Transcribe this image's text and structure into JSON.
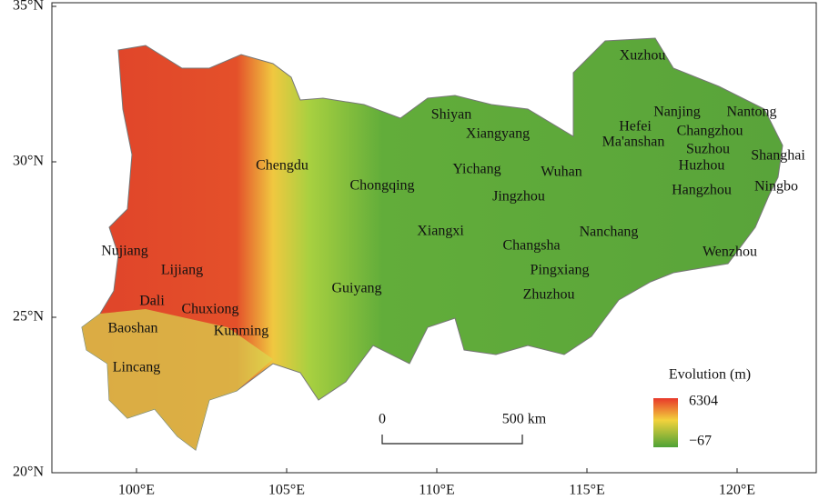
{
  "map": {
    "axes": {
      "x_ticks": [
        "100°E",
        "105°E",
        "110°E",
        "115°E",
        "120°E"
      ],
      "y_ticks": [
        "35°N",
        "30°N",
        "25°N",
        "20°N"
      ]
    },
    "cities": [
      "Xuzhou",
      "Shiyan",
      "Xiangyang",
      "Nanjing",
      "Nantong",
      "Hefei",
      "Changzhou",
      "Ma'anshan",
      "Suzhou",
      "Shanghai",
      "Chengdu",
      "Yichang",
      "Wuhan",
      "Huzhou",
      "Chongqing",
      "Jingzhou",
      "Hangzhou",
      "Ningbo",
      "Xiangxi",
      "Nanchang",
      "Changsha",
      "Nujiang",
      "Wenzhou",
      "Lijiang",
      "Pingxiang",
      "Guiyang",
      "Dali",
      "Chuxiong",
      "Zhuzhou",
      "Baoshan",
      "Kunming",
      "Lincang"
    ],
    "legend": {
      "title": "Evolution (m)",
      "max": "6304",
      "min": "−67"
    },
    "scale_bar": {
      "start": "0",
      "end": "500 km"
    }
  }
}
